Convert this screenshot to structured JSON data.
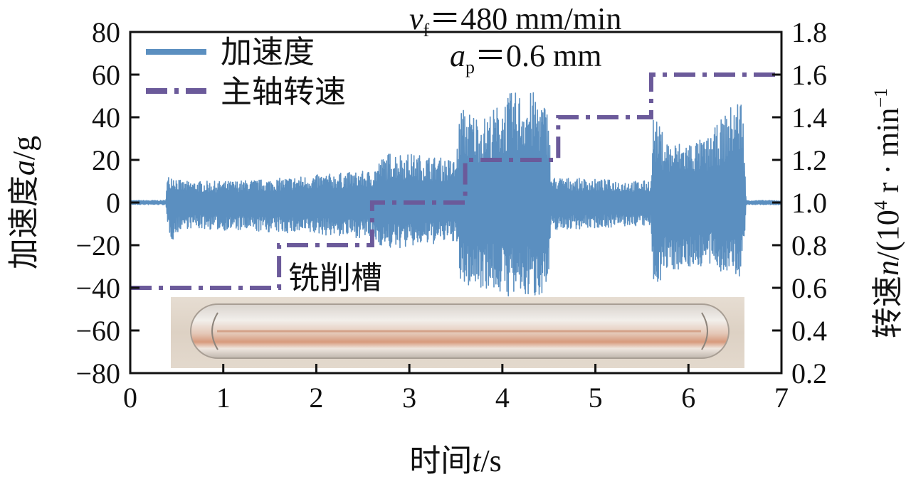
{
  "chart_data": {
    "type": "line",
    "title": "",
    "xlabel_prefix": "时间",
    "xlabel_var": "t",
    "xlabel_unit": "/s",
    "ylabel_prefix": "加速度",
    "ylabel_var": "a",
    "ylabel_unit": "/g",
    "y2label_prefix": "转速",
    "y2label_var": "n",
    "y2label_unit": "/(10",
    "y2label_exp": "4",
    "y2label_unit2": " r · min",
    "y2label_exp2": "−1",
    "xlim": [
      0,
      7
    ],
    "ylim": [
      -80,
      80
    ],
    "y2lim": [
      0.2,
      1.8
    ],
    "x_ticks": [
      "0",
      "1",
      "2",
      "3",
      "4",
      "5",
      "6",
      "7"
    ],
    "y_ticks": [
      "80",
      "60",
      "40",
      "20",
      "0",
      "−20",
      "−40",
      "−60",
      "−80"
    ],
    "y2_ticks": [
      "1.8",
      "1.6",
      "1.4",
      "1.2",
      "1.0",
      "0.8",
      "0.6",
      "0.4",
      "0.2"
    ],
    "grid": false,
    "legend_position": "top-left",
    "series": [
      {
        "name": "加速度",
        "axis": "left",
        "style": "solid",
        "color": "#5b8fc0",
        "envelope": [
          {
            "x": 0.0,
            "min": -1,
            "max": 1
          },
          {
            "x": 0.38,
            "min": -1,
            "max": 1
          },
          {
            "x": 0.4,
            "min": -12,
            "max": 12
          },
          {
            "x": 0.45,
            "min": -18,
            "max": 14
          },
          {
            "x": 0.55,
            "min": -12,
            "max": 10
          },
          {
            "x": 1.0,
            "min": -13,
            "max": 10
          },
          {
            "x": 1.5,
            "min": -14,
            "max": 11
          },
          {
            "x": 2.0,
            "min": -15,
            "max": 13
          },
          {
            "x": 2.6,
            "min": -17,
            "max": 15
          },
          {
            "x": 2.68,
            "min": -20,
            "max": 20
          },
          {
            "x": 2.8,
            "min": -22,
            "max": 24
          },
          {
            "x": 3.2,
            "min": -20,
            "max": 22
          },
          {
            "x": 3.5,
            "min": -18,
            "max": 20
          },
          {
            "x": 3.55,
            "min": -40,
            "max": 45
          },
          {
            "x": 3.8,
            "min": -40,
            "max": 40
          },
          {
            "x": 4.1,
            "min": -45,
            "max": 52
          },
          {
            "x": 4.35,
            "min": -45,
            "max": 52
          },
          {
            "x": 4.5,
            "min": -40,
            "max": 44
          },
          {
            "x": 4.52,
            "min": -13,
            "max": 12
          },
          {
            "x": 5.0,
            "min": -12,
            "max": 11
          },
          {
            "x": 5.5,
            "min": -11,
            "max": 10
          },
          {
            "x": 5.6,
            "min": -12,
            "max": 11
          },
          {
            "x": 5.62,
            "min": -40,
            "max": 41
          },
          {
            "x": 5.8,
            "min": -32,
            "max": 28
          },
          {
            "x": 6.2,
            "min": -30,
            "max": 30
          },
          {
            "x": 6.5,
            "min": -35,
            "max": 48
          },
          {
            "x": 6.58,
            "min": -36,
            "max": 50
          },
          {
            "x": 6.62,
            "min": -1,
            "max": 1
          },
          {
            "x": 7.0,
            "min": -1,
            "max": 1
          }
        ]
      },
      {
        "name": "主轴转速",
        "axis": "right",
        "style": "dash-dot",
        "color": "#6b5a9a",
        "points": [
          {
            "x": 0.0,
            "y": 0.6
          },
          {
            "x": 1.6,
            "y": 0.6
          },
          {
            "x": 1.6,
            "y": 0.8
          },
          {
            "x": 2.6,
            "y": 0.8
          },
          {
            "x": 2.6,
            "y": 1.0
          },
          {
            "x": 3.6,
            "y": 1.0
          },
          {
            "x": 3.6,
            "y": 1.2
          },
          {
            "x": 4.6,
            "y": 1.2
          },
          {
            "x": 4.6,
            "y": 1.4
          },
          {
            "x": 5.6,
            "y": 1.4
          },
          {
            "x": 5.6,
            "y": 1.6
          },
          {
            "x": 7.0,
            "y": 1.6
          }
        ]
      }
    ],
    "annotations": {
      "vf_var": "v",
      "vf_sub": "f",
      "vf_value": "＝480 mm/min",
      "ap_var": "a",
      "ap_sub": "p",
      "ap_value": "＝0.6 mm",
      "inset_label": "铣削槽"
    }
  }
}
